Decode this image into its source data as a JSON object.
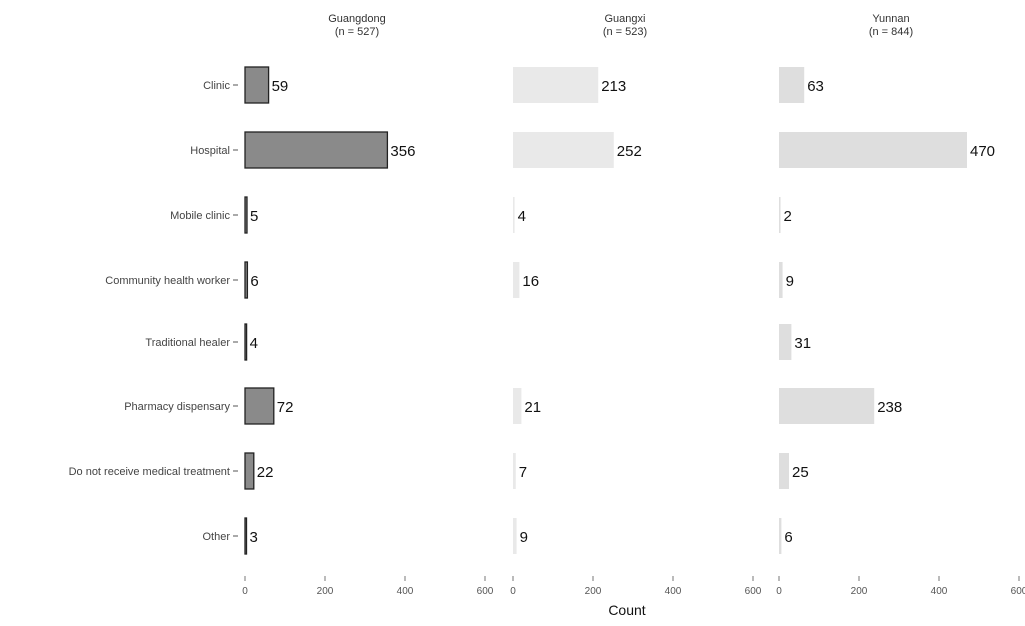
{
  "chart_data": {
    "type": "bar",
    "orientation": "horizontal",
    "xlabel": "Count",
    "xlim": [
      0,
      600
    ],
    "xticks": [
      "0",
      "200",
      "400",
      "600"
    ],
    "categories": [
      "Clinic",
      "Hospital",
      "Mobile clinic",
      "Community health worker",
      "Traditional healer",
      "Pharmacy dispensary",
      "Do not receive medical treatment",
      "Other"
    ],
    "panels": [
      {
        "name": "Guangdong",
        "subtitle": "(n = 527)",
        "color": "#8a8a8a",
        "values": [
          59,
          356,
          5,
          6,
          4,
          72,
          22,
          3
        ]
      },
      {
        "name": "Guangxi",
        "subtitle": "(n = 523)",
        "color": "#e9e9e9",
        "values": [
          213,
          252,
          4,
          16,
          null,
          21,
          7,
          9
        ]
      },
      {
        "name": "Yunnan",
        "subtitle": "(n = 844)",
        "color": "#dedede",
        "values": [
          63,
          470,
          2,
          9,
          31,
          238,
          25,
          6
        ]
      }
    ],
    "grid": false,
    "legend": "none"
  }
}
